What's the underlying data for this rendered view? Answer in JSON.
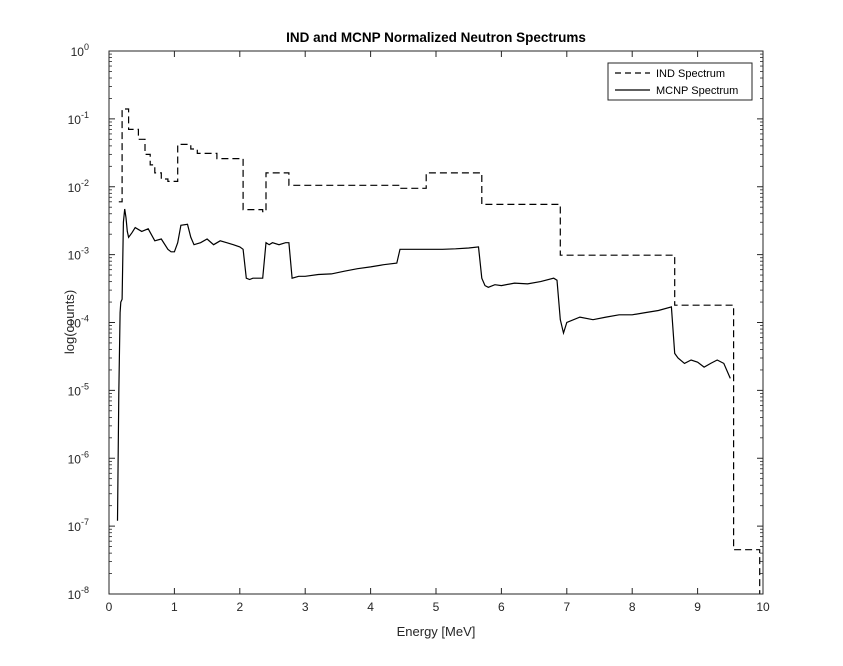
{
  "chart_data": {
    "type": "line",
    "title": "IND and MCNP Normalized Neutron Spectrums",
    "xlabel": "Energy [MeV]",
    "ylabel": "log(counts)",
    "xlim": [
      0,
      10
    ],
    "ylim_exp": [
      -8,
      0
    ],
    "yscale": "log",
    "x_ticks": [
      "0",
      "1",
      "2",
      "3",
      "4",
      "5",
      "6",
      "7",
      "8",
      "9",
      "10"
    ],
    "y_ticks": [
      {
        "base": "10",
        "exp": "-8"
      },
      {
        "base": "10",
        "exp": "-7"
      },
      {
        "base": "10",
        "exp": "-6"
      },
      {
        "base": "10",
        "exp": "-5"
      },
      {
        "base": "10",
        "exp": "-4"
      },
      {
        "base": "10",
        "exp": "-3"
      },
      {
        "base": "10",
        "exp": "-2"
      },
      {
        "base": "10",
        "exp": "-1"
      },
      {
        "base": "10",
        "exp": "0"
      }
    ],
    "legend_position": "top-right",
    "series": [
      {
        "name": "IND Spectrum",
        "style": "dashed",
        "color": "#000000",
        "x": [
          0.15,
          0.2,
          0.2,
          0.3,
          0.3,
          0.45,
          0.45,
          0.55,
          0.55,
          0.63,
          0.63,
          0.7,
          0.7,
          0.8,
          0.8,
          0.9,
          0.9,
          1.05,
          1.05,
          1.25,
          1.25,
          1.35,
          1.35,
          1.65,
          1.65,
          2.05,
          2.05,
          2.35,
          2.35,
          2.4,
          2.4,
          2.75,
          2.75,
          4.45,
          4.45,
          4.85,
          4.85,
          5.7,
          5.7,
          6.9,
          6.9,
          8.65,
          8.65,
          9.55,
          9.55,
          9.95,
          9.95
        ],
        "y": [
          0.006,
          0.006,
          0.14,
          0.14,
          0.07,
          0.07,
          0.05,
          0.05,
          0.03,
          0.03,
          0.021,
          0.021,
          0.016,
          0.016,
          0.013,
          0.013,
          0.012,
          0.012,
          0.042,
          0.042,
          0.036,
          0.036,
          0.031,
          0.031,
          0.026,
          0.026,
          0.0046,
          0.0046,
          0.0043,
          0.0043,
          0.016,
          0.016,
          0.0105,
          0.0105,
          0.0095,
          0.0095,
          0.016,
          0.016,
          0.0055,
          0.0055,
          0.00098,
          0.00098,
          0.00018,
          0.00018,
          4.5e-08,
          4.5e-08,
          1e-08
        ]
      },
      {
        "name": "MCNP Spectrum",
        "style": "solid",
        "color": "#000000",
        "x": [
          0.13,
          0.15,
          0.17,
          0.18,
          0.2,
          0.22,
          0.24,
          0.26,
          0.28,
          0.3,
          0.35,
          0.4,
          0.5,
          0.6,
          0.7,
          0.8,
          0.9,
          0.95,
          1.0,
          1.05,
          1.1,
          1.2,
          1.25,
          1.3,
          1.4,
          1.5,
          1.6,
          1.7,
          1.8,
          1.9,
          2.0,
          2.05,
          2.1,
          2.15,
          2.2,
          2.3,
          2.35,
          2.4,
          2.45,
          2.5,
          2.6,
          2.7,
          2.75,
          2.8,
          2.9,
          3.0,
          3.2,
          3.4,
          3.6,
          3.8,
          4.0,
          4.2,
          4.4,
          4.45,
          4.5,
          4.7,
          4.9,
          5.1,
          5.3,
          5.5,
          5.65,
          5.7,
          5.75,
          5.8,
          5.9,
          6.0,
          6.2,
          6.4,
          6.6,
          6.8,
          6.85,
          6.9,
          6.95,
          7.0,
          7.2,
          7.4,
          7.6,
          7.8,
          8.0,
          8.2,
          8.4,
          8.6,
          8.65,
          8.7,
          8.8,
          8.9,
          9.0,
          9.1,
          9.2,
          9.3,
          9.4,
          9.5
        ],
        "y": [
          1.2e-07,
          9e-06,
          0.00014,
          0.0002,
          0.00022,
          0.003,
          0.0047,
          0.0035,
          0.0022,
          0.0018,
          0.0021,
          0.0025,
          0.0022,
          0.0024,
          0.0016,
          0.0017,
          0.0012,
          0.0011,
          0.0011,
          0.0015,
          0.0027,
          0.0028,
          0.0018,
          0.0014,
          0.0015,
          0.0017,
          0.0014,
          0.0016,
          0.0015,
          0.0014,
          0.0013,
          0.0012,
          0.00045,
          0.00043,
          0.00045,
          0.00045,
          0.00045,
          0.0015,
          0.0014,
          0.0015,
          0.0014,
          0.0015,
          0.0015,
          0.00045,
          0.00048,
          0.00048,
          0.00051,
          0.00052,
          0.00057,
          0.00062,
          0.00066,
          0.00071,
          0.00075,
          0.0012,
          0.0012,
          0.0012,
          0.0012,
          0.0012,
          0.00122,
          0.00125,
          0.0013,
          0.00045,
          0.00035,
          0.00033,
          0.00036,
          0.00035,
          0.00038,
          0.00037,
          0.0004,
          0.00045,
          0.00042,
          0.00011,
          7e-05,
          0.0001,
          0.00012,
          0.00011,
          0.00012,
          0.00013,
          0.00013,
          0.00014,
          0.00015,
          0.00017,
          3.5e-05,
          3e-05,
          2.5e-05,
          2.8e-05,
          2.6e-05,
          2.2e-05,
          2.5e-05,
          2.8e-05,
          2.5e-05,
          1.5e-05
        ]
      }
    ]
  }
}
